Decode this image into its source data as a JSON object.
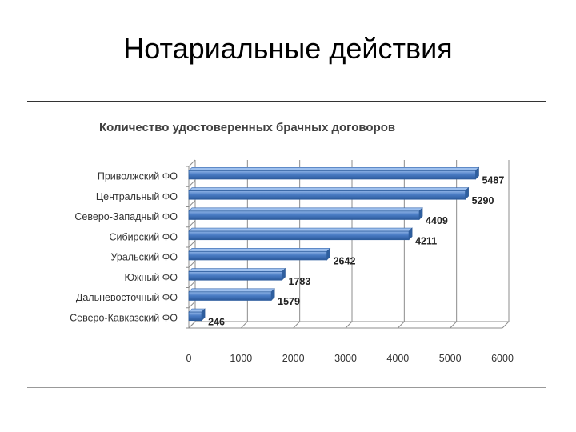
{
  "slide": {
    "title": "Нотариальные действия"
  },
  "chart_data": {
    "type": "bar",
    "orientation": "horizontal",
    "title": "Количество удостоверенных брачных договоров",
    "categories": [
      "Приволжский ФО",
      "Центральный ФО",
      "Северо-Западный ФО",
      "Сибирский ФО",
      "Уральский ФО",
      "Южный ФО",
      "Дальневосточный ФО",
      "Северо-Кавказский ФО"
    ],
    "values": [
      5487,
      5290,
      4409,
      4211,
      2642,
      1783,
      1579,
      246
    ],
    "xlim": [
      0,
      6000
    ],
    "xticks": [
      0,
      1000,
      2000,
      3000,
      4000,
      5000,
      6000
    ],
    "grid": true,
    "bar_color": "#4a7cc4"
  }
}
